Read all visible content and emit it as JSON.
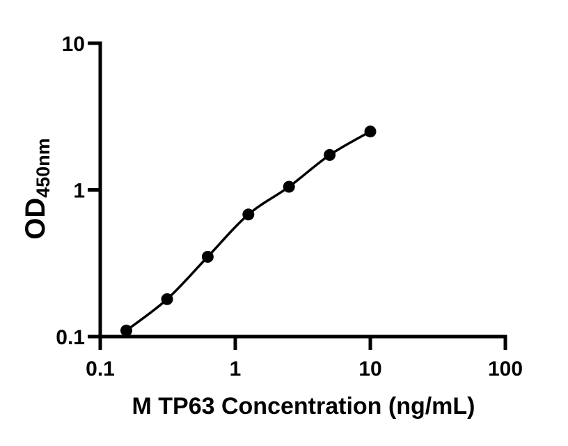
{
  "figure": {
    "background_color": "#ffffff",
    "foreground_color": "#000000"
  },
  "chart_data": {
    "type": "scatter",
    "title": "",
    "xlabel": "M TP63 Concentration (ng/mL)",
    "ylabel_main": "OD",
    "ylabel_sub": "450nm",
    "x_scale": "log",
    "y_scale": "log",
    "xlim": [
      0.1,
      100
    ],
    "ylim": [
      0.1,
      10
    ],
    "x_ticks": [
      0.1,
      1,
      10,
      100
    ],
    "x_tick_labels": [
      "0.1",
      "1",
      "10",
      "100"
    ],
    "y_ticks": [
      0.1,
      1,
      10
    ],
    "y_tick_labels": [
      "0.1",
      "1",
      "10"
    ],
    "grid": false,
    "legend": false,
    "series": [
      {
        "x": [
          0.156,
          0.313,
          0.625,
          1.25,
          2.5,
          5,
          10
        ],
        "y": [
          0.11,
          0.18,
          0.35,
          0.68,
          1.05,
          1.73,
          2.5
        ],
        "marker": "filled-circle",
        "marker_color": "#000000",
        "line_color": "#000000",
        "line_style": "smooth"
      }
    ]
  }
}
